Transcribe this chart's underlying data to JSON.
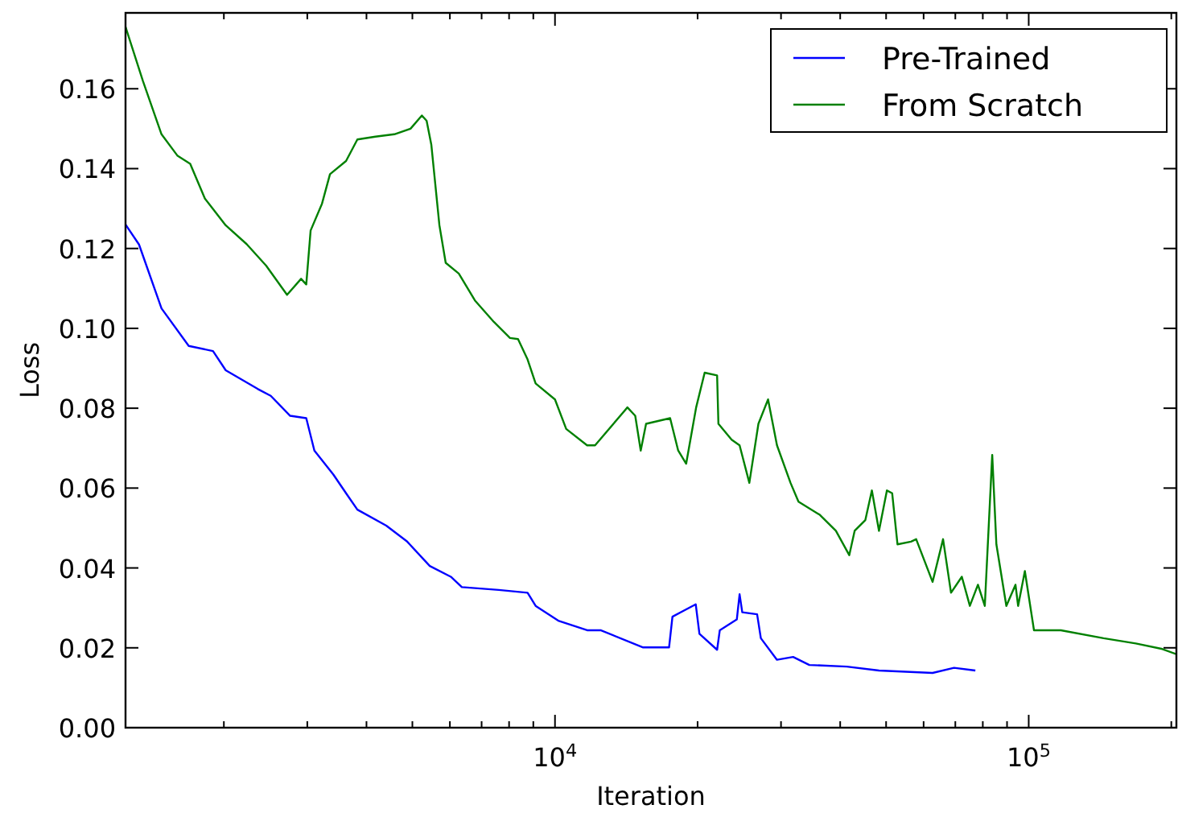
{
  "chart_data": {
    "type": "line",
    "xlabel": "Iteration",
    "ylabel": "Loss",
    "log": "x",
    "xlim": [
      1240,
      205000
    ],
    "ylim": [
      0,
      0.179
    ],
    "xticks": [
      {
        "value": 2000,
        "label": null
      },
      {
        "value": 3000,
        "label": null
      },
      {
        "value": 4000,
        "label": null
      },
      {
        "value": 5000,
        "label": null
      },
      {
        "value": 6000,
        "label": null
      },
      {
        "value": 7000,
        "label": null
      },
      {
        "value": 8000,
        "label": null
      },
      {
        "value": 9000,
        "label": null
      },
      {
        "value": 10000,
        "label": "10$^{4}$"
      },
      {
        "value": 20000,
        "label": null
      },
      {
        "value": 30000,
        "label": null
      },
      {
        "value": 40000,
        "label": null
      },
      {
        "value": 50000,
        "label": null
      },
      {
        "value": 60000,
        "label": null
      },
      {
        "value": 70000,
        "label": null
      },
      {
        "value": 80000,
        "label": null
      },
      {
        "value": 90000,
        "label": null
      },
      {
        "value": 100000,
        "label": "10$^{5}$"
      },
      {
        "value": 200000,
        "label": null
      }
    ],
    "yticks": [
      {
        "value": 0,
        "label": "0.00"
      },
      {
        "value": 0.02,
        "label": "0.02"
      },
      {
        "value": 0.04,
        "label": "0.04"
      },
      {
        "value": 0.06,
        "label": "0.06"
      },
      {
        "value": 0.08,
        "label": "0.08"
      },
      {
        "value": 0.1,
        "label": "0.10"
      },
      {
        "value": 0.12,
        "label": "0.12"
      },
      {
        "value": 0.14,
        "label": "0.14"
      },
      {
        "value": 0.16,
        "label": "0.16"
      }
    ],
    "grid": false,
    "legend": "top right",
    "line_style": "solid",
    "marker": "none",
    "series": [
      {
        "name": "Pre-Trained",
        "color": "#0000ff",
        "x": [
          1240,
          1324,
          1477,
          1686,
          1897,
          2018,
          2360,
          2512,
          2760,
          2985,
          3105,
          3405,
          3622,
          3827,
          4404,
          4875,
          5441,
          6026,
          6359,
          7607,
          8753,
          9102,
          10160,
          11690,
          12480,
          15350,
          17410,
          17700,
          19820,
          20180,
          21990,
          22280,
          24200,
          24530,
          24850,
          26710,
          27200,
          29420,
          31820,
          34430,
          41310,
          48300,
          62670,
          69570,
          77160
        ],
        "values": [
          0.126,
          0.121,
          0.105,
          0.0956,
          0.0943,
          0.0895,
          0.0848,
          0.0831,
          0.0781,
          0.0775,
          0.0694,
          0.0634,
          0.0587,
          0.0546,
          0.0506,
          0.0466,
          0.0405,
          0.0378,
          0.0352,
          0.0345,
          0.0338,
          0.0305,
          0.0268,
          0.0244,
          0.0244,
          0.0201,
          0.0201,
          0.0278,
          0.0309,
          0.0235,
          0.0195,
          0.0244,
          0.0271,
          0.0334,
          0.0289,
          0.0284,
          0.0224,
          0.017,
          0.0177,
          0.0157,
          0.0153,
          0.0143,
          0.0137,
          0.015,
          0.0143
        ]
      },
      {
        "name": "From Scratch",
        "color": "#008000",
        "x": [
          1240,
          1349,
          1477,
          1597,
          1698,
          1824,
          2018,
          2234,
          2456,
          2719,
          2911,
          2985,
          3049,
          3222,
          3350,
          3622,
          3827,
          4178,
          4581,
          4955,
          5236,
          5358,
          5482,
          5702,
          5879,
          6266,
          6775,
          7431,
          8035,
          8356,
          8753,
          9102,
          10000,
          10560,
          11690,
          12150,
          14220,
          14770,
          15170,
          15570,
          17500,
          18200,
          18920,
          19860,
          20700,
          21990,
          22130,
          23600,
          24530,
          25720,
          26880,
          28170,
          29420,
          31420,
          32660,
          36230,
          39170,
          41800,
          42910,
          45200,
          46660,
          48300,
          50200,
          51500,
          52850,
          56440,
          57870,
          62670,
          65950,
          68550,
          72250,
          75120,
          78130,
          80780,
          83750,
          85460,
          89700,
          93770,
          94980,
          98150,
          102600,
          116900,
          143900,
          168300,
          191500,
          205000
        ],
        "values": [
          0.1755,
          0.162,
          0.1486,
          0.1432,
          0.1412,
          0.1325,
          0.1258,
          0.1211,
          0.1157,
          0.1084,
          0.1124,
          0.111,
          0.1245,
          0.1312,
          0.1386,
          0.1419,
          0.1473,
          0.148,
          0.1486,
          0.15,
          0.1533,
          0.152,
          0.146,
          0.1258,
          0.1164,
          0.1137,
          0.107,
          0.1016,
          0.0976,
          0.0973,
          0.0922,
          0.0862,
          0.0822,
          0.0748,
          0.0707,
          0.0707,
          0.0802,
          0.0781,
          0.0694,
          0.0761,
          0.0775,
          0.0694,
          0.0661,
          0.0802,
          0.0889,
          0.0882,
          0.0761,
          0.0721,
          0.0707,
          0.0613,
          0.0761,
          0.0822,
          0.0707,
          0.0613,
          0.0566,
          0.0533,
          0.0493,
          0.0432,
          0.0493,
          0.052,
          0.0594,
          0.0493,
          0.0594,
          0.0587,
          0.0459,
          0.0466,
          0.0472,
          0.0365,
          0.0472,
          0.0338,
          0.0378,
          0.0305,
          0.0358,
          0.0305,
          0.0683,
          0.0459,
          0.0305,
          0.0358,
          0.0305,
          0.0392,
          0.0244,
          0.0244,
          0.0224,
          0.0211,
          0.0197,
          0.0184
        ]
      }
    ]
  }
}
